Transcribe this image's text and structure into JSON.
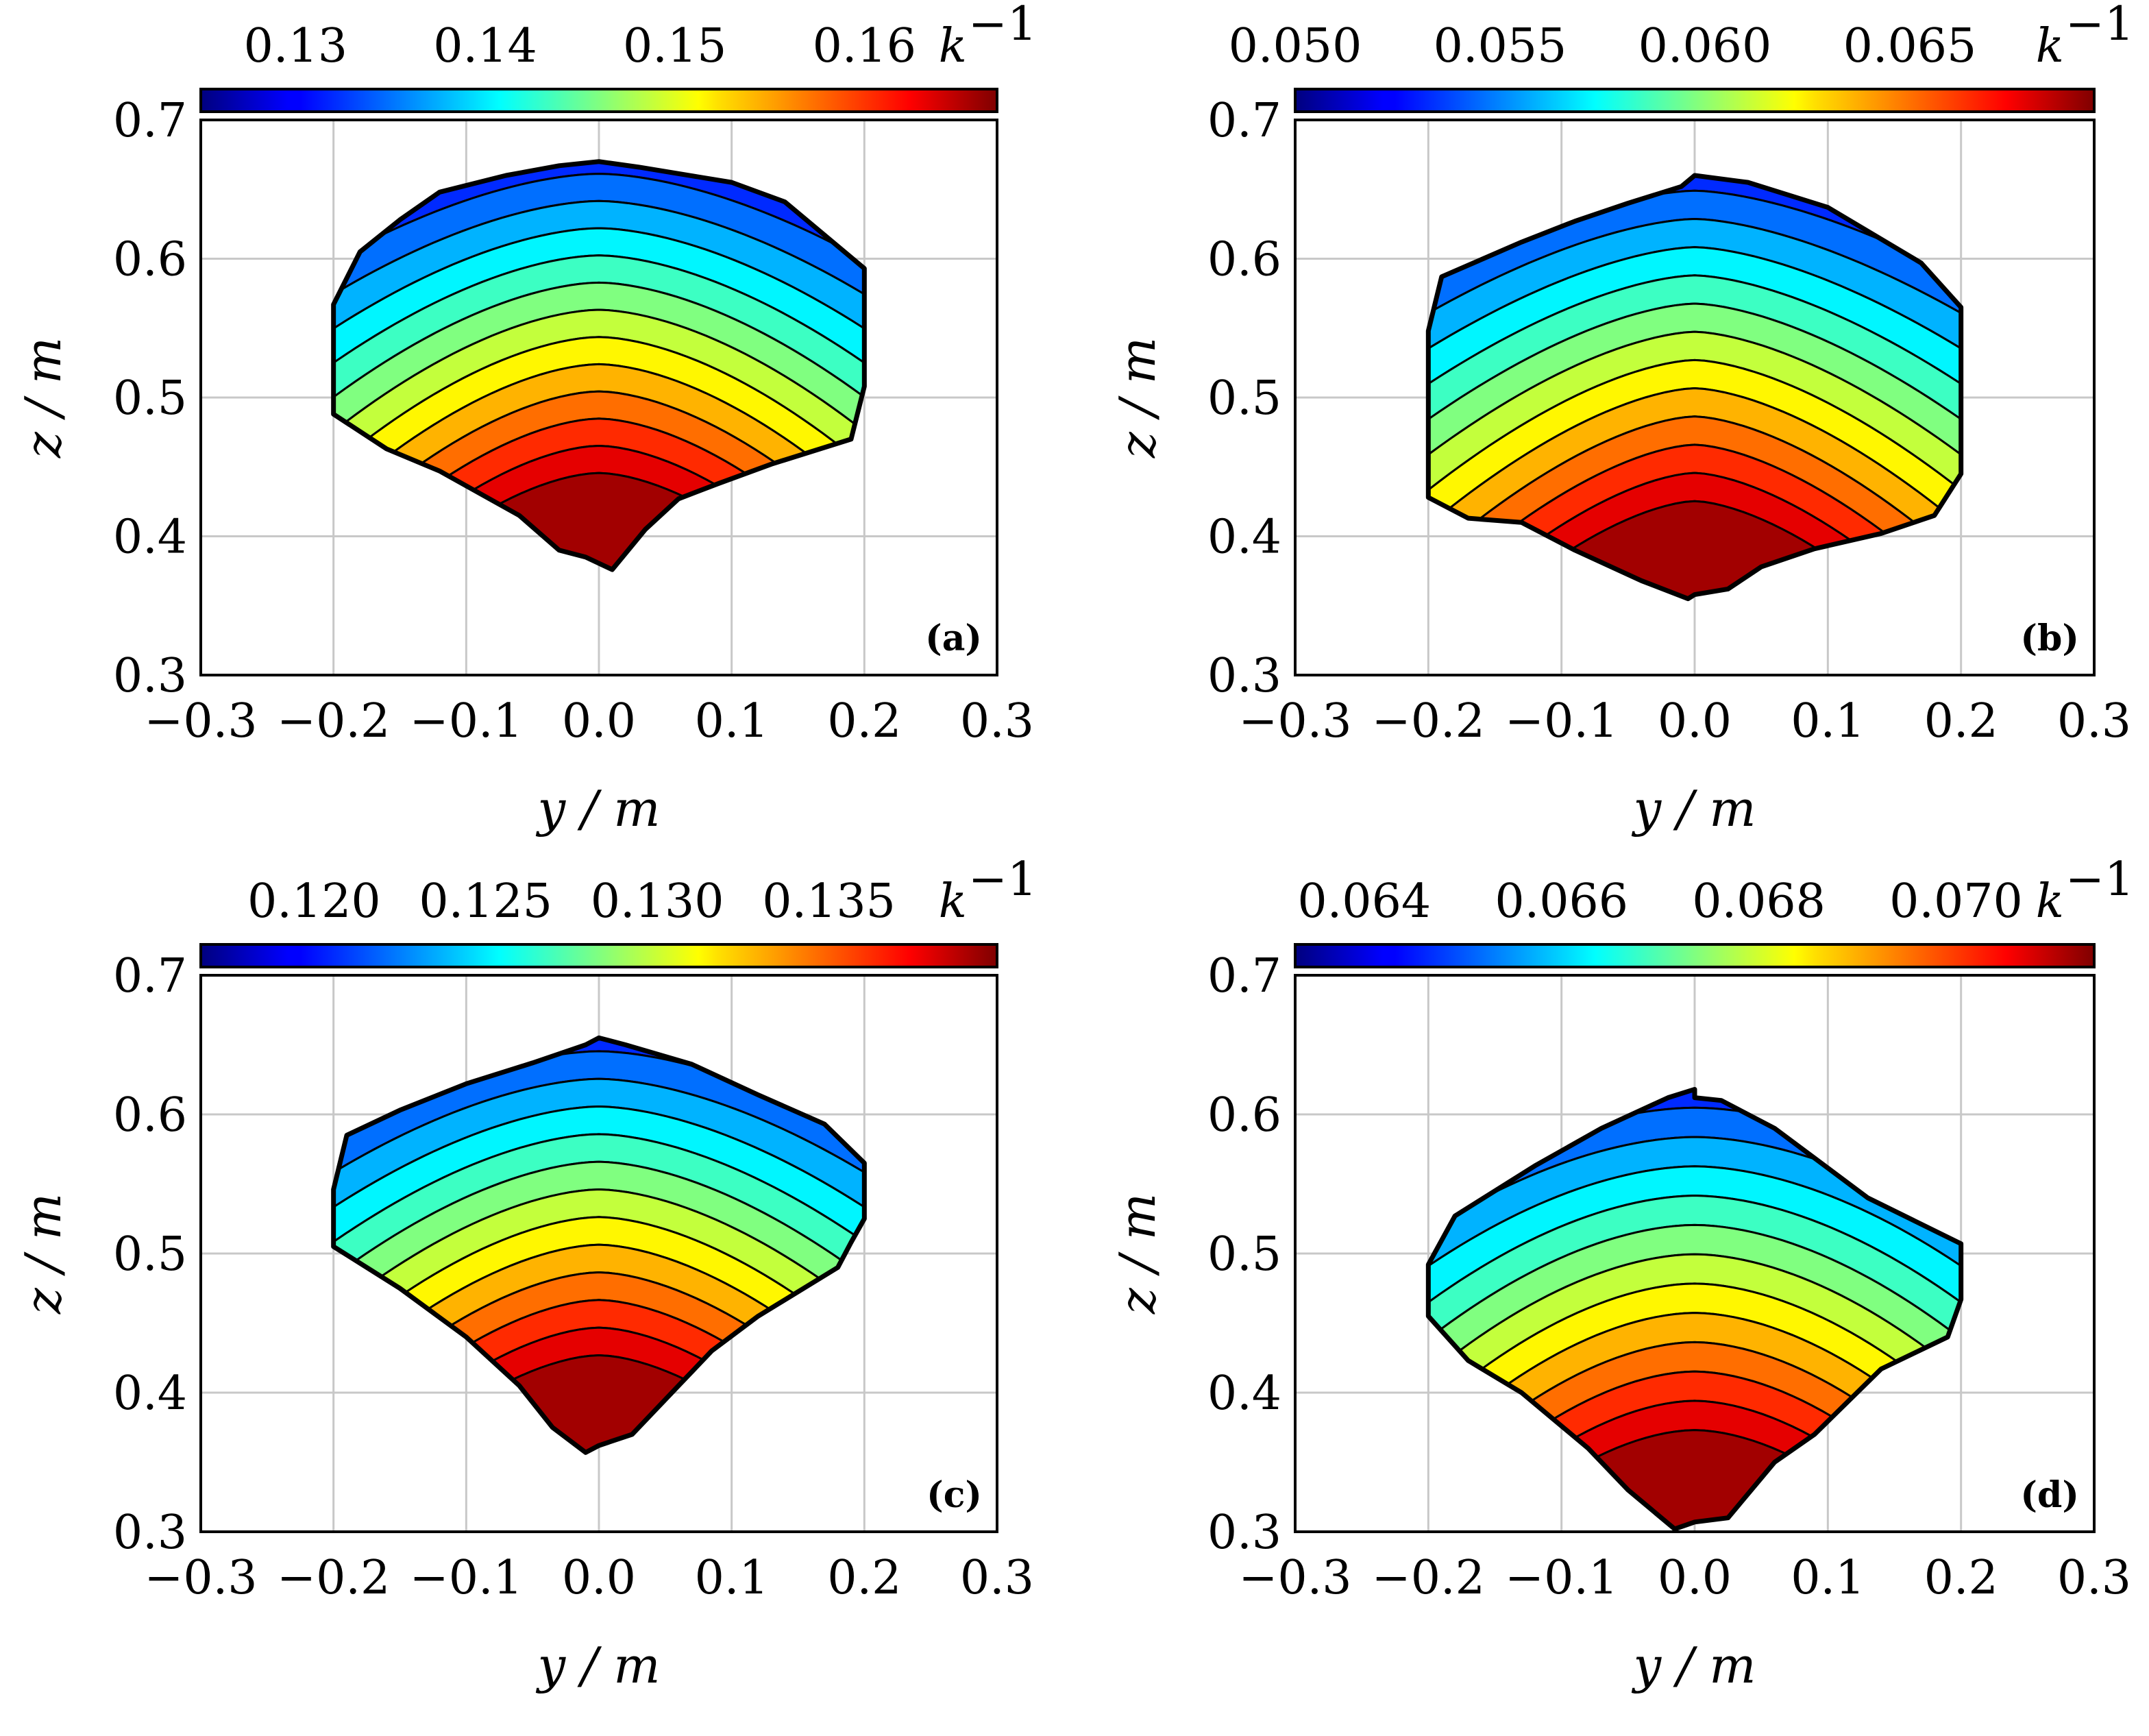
{
  "figure_title": "",
  "chart_data": [
    {
      "type": "contour",
      "panel_label": "(a)",
      "xlabel": "y / m",
      "ylabel": "z / m",
      "xlim": [
        -0.3,
        0.3
      ],
      "ylim": [
        0.3,
        0.7
      ],
      "x_ticks": [
        -0.3,
        -0.2,
        -0.1,
        0.0,
        0.1,
        0.2,
        0.3
      ],
      "y_ticks": [
        0.3,
        0.4,
        0.5,
        0.6,
        0.7
      ],
      "x_tick_labels": [
        "−0.3",
        "−0.2",
        "−0.1",
        "0.0",
        "0.1",
        "0.2",
        "0.3"
      ],
      "y_tick_labels": [
        "0.3",
        "0.4",
        "0.5",
        "0.6",
        "0.7"
      ],
      "grid": true,
      "colorbar": {
        "label": "k",
        "label_superscript": "−1",
        "ticks": [
          0.13,
          0.14,
          0.15,
          0.16
        ],
        "tick_labels": [
          "0.13",
          "0.14",
          "0.15",
          "0.16"
        ],
        "vmin": 0.125,
        "vmax": 0.167,
        "colormap": "jet"
      },
      "levels": 15,
      "boundary": [
        [
          -0.2,
          0.567
        ],
        [
          -0.18,
          0.605
        ],
        [
          -0.15,
          0.628
        ],
        [
          -0.12,
          0.648
        ],
        [
          -0.07,
          0.66
        ],
        [
          -0.03,
          0.667
        ],
        [
          0.0,
          0.67
        ],
        [
          0.0,
          0.67
        ],
        [
          0.03,
          0.666
        ],
        [
          0.1,
          0.655
        ],
        [
          0.14,
          0.641
        ],
        [
          0.2,
          0.593
        ],
        [
          0.2,
          0.508
        ],
        [
          0.2,
          0.508
        ],
        [
          0.19,
          0.47
        ],
        [
          0.13,
          0.452
        ],
        [
          0.09,
          0.438
        ],
        [
          0.06,
          0.427
        ],
        [
          0.035,
          0.405
        ],
        [
          0.01,
          0.376
        ],
        [
          -0.01,
          0.385
        ],
        [
          -0.03,
          0.39
        ],
        [
          -0.06,
          0.415
        ],
        [
          -0.12,
          0.447
        ],
        [
          -0.16,
          0.463
        ],
        [
          -0.2,
          0.488
        ]
      ],
      "z_top": 0.67,
      "z_bottom": 0.376,
      "apex_pointiness": 0.1
    },
    {
      "type": "contour",
      "panel_label": "(b)",
      "xlabel": "y / m",
      "ylabel": "z / m",
      "xlim": [
        -0.3,
        0.3
      ],
      "ylim": [
        0.3,
        0.7
      ],
      "x_ticks": [
        -0.3,
        -0.2,
        -0.1,
        0.0,
        0.1,
        0.2,
        0.3
      ],
      "y_ticks": [
        0.3,
        0.4,
        0.5,
        0.6,
        0.7
      ],
      "x_tick_labels": [
        "−0.3",
        "−0.2",
        "−0.1",
        "0.0",
        "0.1",
        "0.2",
        "0.3"
      ],
      "y_tick_labels": [
        "0.3",
        "0.4",
        "0.5",
        "0.6",
        "0.7"
      ],
      "grid": true,
      "colorbar": {
        "label": "k",
        "label_superscript": "−1",
        "ticks": [
          0.05,
          0.055,
          0.06,
          0.065
        ],
        "tick_labels": [
          "0.050",
          "0.055",
          "0.060",
          "0.065"
        ],
        "vmin": 0.05,
        "vmax": 0.0695,
        "colormap": "jet"
      },
      "levels": 15,
      "boundary": [
        [
          -0.2,
          0.548
        ],
        [
          -0.19,
          0.587
        ],
        [
          -0.13,
          0.612
        ],
        [
          -0.09,
          0.627
        ],
        [
          -0.05,
          0.64
        ],
        [
          -0.01,
          0.652
        ],
        [
          0.0,
          0.66
        ],
        [
          0.0,
          0.66
        ],
        [
          0.04,
          0.655
        ],
        [
          0.1,
          0.637
        ],
        [
          0.17,
          0.597
        ],
        [
          0.2,
          0.565
        ],
        [
          0.2,
          0.445
        ],
        [
          0.2,
          0.445
        ],
        [
          0.18,
          0.415
        ],
        [
          0.14,
          0.402
        ],
        [
          0.09,
          0.391
        ],
        [
          0.05,
          0.378
        ],
        [
          0.025,
          0.362
        ],
        [
          0.0,
          0.358
        ],
        [
          -0.005,
          0.355
        ],
        [
          -0.04,
          0.368
        ],
        [
          -0.09,
          0.39
        ],
        [
          -0.13,
          0.41
        ],
        [
          -0.17,
          0.413
        ],
        [
          -0.2,
          0.428
        ]
      ],
      "z_top": 0.66,
      "z_bottom": 0.355,
      "apex_pointiness": 0.0
    },
    {
      "type": "contour",
      "panel_label": "(c)",
      "xlabel": "y / m",
      "ylabel": "z / m",
      "xlim": [
        -0.3,
        0.3
      ],
      "ylim": [
        0.3,
        0.7
      ],
      "x_ticks": [
        -0.3,
        -0.2,
        -0.1,
        0.0,
        0.1,
        0.2,
        0.3
      ],
      "y_ticks": [
        0.3,
        0.4,
        0.5,
        0.6,
        0.7
      ],
      "x_tick_labels": [
        "−0.3",
        "−0.2",
        "−0.1",
        "0.0",
        "0.1",
        "0.2",
        "0.3"
      ],
      "y_tick_labels": [
        "0.3",
        "0.4",
        "0.5",
        "0.6",
        "0.7"
      ],
      "grid": true,
      "colorbar": {
        "label": "k",
        "label_superscript": "−1",
        "ticks": [
          0.12,
          0.125,
          0.13,
          0.135
        ],
        "tick_labels": [
          "0.120",
          "0.125",
          "0.130",
          "0.135"
        ],
        "vmin": 0.1167,
        "vmax": 0.1399,
        "colormap": "jet"
      },
      "levels": 15,
      "boundary": [
        [
          -0.2,
          0.546
        ],
        [
          -0.19,
          0.585
        ],
        [
          -0.15,
          0.603
        ],
        [
          -0.1,
          0.622
        ],
        [
          -0.05,
          0.637
        ],
        [
          -0.01,
          0.65
        ],
        [
          0.0,
          0.655
        ],
        [
          0.0,
          0.655
        ],
        [
          0.02,
          0.65
        ],
        [
          0.07,
          0.636
        ],
        [
          0.12,
          0.614
        ],
        [
          0.17,
          0.593
        ],
        [
          0.2,
          0.565
        ],
        [
          0.2,
          0.525
        ],
        [
          0.19,
          0.508
        ],
        [
          0.18,
          0.49
        ],
        [
          0.12,
          0.455
        ],
        [
          0.085,
          0.43
        ],
        [
          0.06,
          0.405
        ],
        [
          0.025,
          0.37
        ],
        [
          0.0,
          0.362
        ],
        [
          -0.01,
          0.357
        ],
        [
          -0.035,
          0.375
        ],
        [
          -0.06,
          0.405
        ],
        [
          -0.1,
          0.44
        ],
        [
          -0.15,
          0.475
        ],
        [
          -0.2,
          0.505
        ]
      ],
      "z_top": 0.655,
      "z_bottom": 0.357,
      "apex_pointiness": 0.1
    },
    {
      "type": "contour",
      "panel_label": "(d)",
      "xlabel": "y / m",
      "ylabel": "z / m",
      "xlim": [
        -0.3,
        0.3
      ],
      "ylim": [
        0.3,
        0.7
      ],
      "x_ticks": [
        -0.3,
        -0.2,
        -0.1,
        0.0,
        0.1,
        0.2,
        0.3
      ],
      "y_ticks": [
        0.3,
        0.4,
        0.5,
        0.6,
        0.7
      ],
      "x_tick_labels": [
        "−0.3",
        "−0.2",
        "−0.1",
        "0.0",
        "0.1",
        "0.2",
        "0.3"
      ],
      "y_tick_labels": [
        "0.3",
        "0.4",
        "0.5",
        "0.6",
        "0.7"
      ],
      "grid": true,
      "colorbar": {
        "label": "k",
        "label_superscript": "−1",
        "ticks": [
          0.064,
          0.066,
          0.068,
          0.07
        ],
        "tick_labels": [
          "0.064",
          "0.066",
          "0.068",
          "0.070"
        ],
        "vmin": 0.0633,
        "vmax": 0.0714,
        "colormap": "jet"
      },
      "levels": 15,
      "boundary": [
        [
          -0.2,
          0.492
        ],
        [
          -0.18,
          0.527
        ],
        [
          -0.12,
          0.563
        ],
        [
          -0.07,
          0.59
        ],
        [
          -0.02,
          0.612
        ],
        [
          0.0,
          0.618
        ],
        [
          0.0,
          0.612
        ],
        [
          0.02,
          0.61
        ],
        [
          0.06,
          0.59
        ],
        [
          0.13,
          0.54
        ],
        [
          0.2,
          0.507
        ],
        [
          0.2,
          0.467
        ],
        [
          0.19,
          0.44
        ],
        [
          0.14,
          0.417
        ],
        [
          0.09,
          0.37
        ],
        [
          0.06,
          0.35
        ],
        [
          0.025,
          0.31
        ],
        [
          0.0,
          0.307
        ],
        [
          -0.015,
          0.302
        ],
        [
          -0.05,
          0.33
        ],
        [
          -0.08,
          0.36
        ],
        [
          -0.13,
          0.4
        ],
        [
          -0.17,
          0.423
        ],
        [
          -0.2,
          0.455
        ]
      ],
      "z_top": 0.618,
      "z_bottom": 0.302,
      "apex_pointiness": 0.2
    }
  ]
}
